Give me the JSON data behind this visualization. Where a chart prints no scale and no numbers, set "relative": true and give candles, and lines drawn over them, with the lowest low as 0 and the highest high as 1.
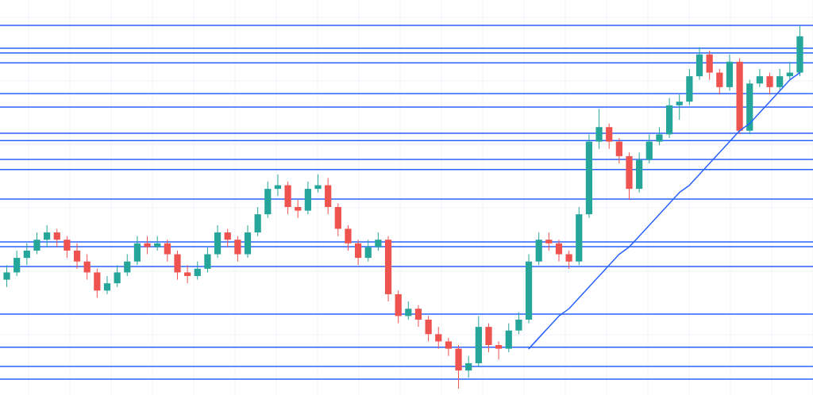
{
  "chart_data": {
    "type": "candlestick",
    "relative": true,
    "grid": true,
    "categories": [
      null,
      null,
      null,
      null,
      null,
      null,
      null,
      null,
      null,
      null,
      null,
      null,
      null,
      null,
      null,
      null,
      null,
      null,
      null,
      null,
      null,
      null,
      null,
      null,
      null,
      null,
      null,
      null,
      null,
      null,
      null,
      null,
      null,
      null,
      null,
      null,
      null,
      null,
      null,
      null,
      null,
      null,
      null,
      null,
      null,
      null,
      null,
      null,
      null,
      null,
      null,
      null,
      null,
      null,
      null,
      null,
      null,
      null,
      null,
      null,
      null,
      null,
      null,
      null,
      null,
      null,
      null,
      null,
      null,
      null,
      null,
      null,
      null,
      null,
      null,
      null,
      null,
      null,
      null,
      null
    ],
    "ohlc": [
      [
        0.3,
        0.34,
        0.28,
        0.32
      ],
      [
        0.32,
        0.38,
        0.31,
        0.36
      ],
      [
        0.36,
        0.4,
        0.34,
        0.38
      ],
      [
        0.38,
        0.43,
        0.37,
        0.41
      ],
      [
        0.41,
        0.45,
        0.39,
        0.43
      ],
      [
        0.43,
        0.44,
        0.39,
        0.41
      ],
      [
        0.41,
        0.42,
        0.36,
        0.38
      ],
      [
        0.38,
        0.4,
        0.33,
        0.35
      ],
      [
        0.35,
        0.37,
        0.3,
        0.32
      ],
      [
        0.32,
        0.33,
        0.25,
        0.27
      ],
      [
        0.27,
        0.31,
        0.26,
        0.29
      ],
      [
        0.29,
        0.34,
        0.28,
        0.32
      ],
      [
        0.32,
        0.37,
        0.31,
        0.35
      ],
      [
        0.35,
        0.42,
        0.34,
        0.4
      ],
      [
        0.4,
        0.42,
        0.37,
        0.39
      ],
      [
        0.39,
        0.42,
        0.38,
        0.4
      ],
      [
        0.4,
        0.41,
        0.35,
        0.37
      ],
      [
        0.37,
        0.38,
        0.3,
        0.32
      ],
      [
        0.32,
        0.34,
        0.29,
        0.31
      ],
      [
        0.31,
        0.35,
        0.3,
        0.33
      ],
      [
        0.33,
        0.39,
        0.32,
        0.37
      ],
      [
        0.37,
        0.45,
        0.36,
        0.43
      ],
      [
        0.43,
        0.44,
        0.39,
        0.41
      ],
      [
        0.41,
        0.42,
        0.35,
        0.37
      ],
      [
        0.37,
        0.45,
        0.36,
        0.43
      ],
      [
        0.43,
        0.5,
        0.42,
        0.48
      ],
      [
        0.48,
        0.57,
        0.47,
        0.55
      ],
      [
        0.55,
        0.59,
        0.53,
        0.56
      ],
      [
        0.56,
        0.57,
        0.48,
        0.5
      ],
      [
        0.5,
        0.52,
        0.47,
        0.49
      ],
      [
        0.49,
        0.57,
        0.48,
        0.55
      ],
      [
        0.55,
        0.59,
        0.54,
        0.56
      ],
      [
        0.56,
        0.58,
        0.48,
        0.5
      ],
      [
        0.5,
        0.51,
        0.42,
        0.44
      ],
      [
        0.44,
        0.45,
        0.38,
        0.4
      ],
      [
        0.4,
        0.41,
        0.34,
        0.36
      ],
      [
        0.36,
        0.41,
        0.35,
        0.39
      ],
      [
        0.39,
        0.43,
        0.38,
        0.41
      ],
      [
        0.41,
        0.42,
        0.24,
        0.26
      ],
      [
        0.26,
        0.27,
        0.18,
        0.2
      ],
      [
        0.2,
        0.24,
        0.19,
        0.22
      ],
      [
        0.22,
        0.23,
        0.17,
        0.19
      ],
      [
        0.19,
        0.2,
        0.13,
        0.15
      ],
      [
        0.15,
        0.17,
        0.11,
        0.13
      ],
      [
        0.13,
        0.14,
        0.09,
        0.11
      ],
      [
        0.11,
        0.12,
        0.0,
        0.05
      ],
      [
        0.05,
        0.09,
        0.03,
        0.07
      ],
      [
        0.07,
        0.2,
        0.06,
        0.17
      ],
      [
        0.17,
        0.18,
        0.1,
        0.12
      ],
      [
        0.12,
        0.13,
        0.08,
        0.11
      ],
      [
        0.11,
        0.18,
        0.1,
        0.16
      ],
      [
        0.16,
        0.21,
        0.15,
        0.19
      ],
      [
        0.19,
        0.37,
        0.18,
        0.35
      ],
      [
        0.35,
        0.43,
        0.34,
        0.41
      ],
      [
        0.41,
        0.43,
        0.38,
        0.4
      ],
      [
        0.4,
        0.41,
        0.35,
        0.37
      ],
      [
        0.37,
        0.38,
        0.33,
        0.35
      ],
      [
        0.35,
        0.5,
        0.34,
        0.48
      ],
      [
        0.48,
        0.7,
        0.47,
        0.68
      ],
      [
        0.68,
        0.77,
        0.66,
        0.72
      ],
      [
        0.72,
        0.73,
        0.66,
        0.68
      ],
      [
        0.68,
        0.69,
        0.62,
        0.64
      ],
      [
        0.64,
        0.65,
        0.52,
        0.55
      ],
      [
        0.55,
        0.65,
        0.54,
        0.63
      ],
      [
        0.63,
        0.7,
        0.62,
        0.68
      ],
      [
        0.68,
        0.72,
        0.67,
        0.7
      ],
      [
        0.7,
        0.8,
        0.69,
        0.78
      ],
      [
        0.78,
        0.81,
        0.74,
        0.79
      ],
      [
        0.79,
        0.88,
        0.78,
        0.86
      ],
      [
        0.86,
        0.94,
        0.85,
        0.92
      ],
      [
        0.92,
        0.93,
        0.85,
        0.87
      ],
      [
        0.87,
        0.88,
        0.81,
        0.83
      ],
      [
        0.83,
        0.92,
        0.82,
        0.9
      ],
      [
        0.9,
        0.91,
        0.7,
        0.71
      ],
      [
        0.71,
        0.85,
        0.7,
        0.84
      ],
      [
        0.84,
        0.88,
        0.83,
        0.86
      ],
      [
        0.86,
        0.87,
        0.81,
        0.83
      ],
      [
        0.83,
        0.88,
        0.82,
        0.86
      ],
      [
        0.86,
        0.9,
        0.85,
        0.87
      ],
      [
        0.87,
        1.0,
        0.86,
        0.97
      ]
    ],
    "series": [
      {
        "type": "line",
        "color": "#2962ff",
        "values": [
          null,
          null,
          null,
          null,
          null,
          null,
          null,
          null,
          null,
          null,
          null,
          null,
          null,
          null,
          null,
          null,
          null,
          null,
          null,
          null,
          null,
          null,
          null,
          null,
          null,
          null,
          null,
          null,
          null,
          null,
          null,
          null,
          null,
          null,
          null,
          null,
          null,
          null,
          null,
          null,
          null,
          null,
          null,
          null,
          null,
          null,
          null,
          null,
          null,
          null,
          null,
          null,
          0.11,
          0.14,
          0.17,
          0.2,
          0.22,
          0.25,
          0.28,
          0.31,
          0.34,
          0.37,
          0.39,
          0.42,
          0.45,
          0.48,
          0.51,
          0.54,
          0.56,
          0.59,
          0.62,
          0.65,
          0.68,
          0.71,
          0.73,
          0.76,
          0.79,
          0.82,
          0.85,
          0.87
        ]
      }
    ],
    "ref_lines": [
      {
        "axis": "y",
        "value": 1.0,
        "color": "#2962ff"
      },
      {
        "axis": "y",
        "value": 0.937,
        "color": "#2962ff"
      },
      {
        "axis": "y",
        "value": 0.924,
        "color": "#2962ff"
      },
      {
        "axis": "y",
        "value": 0.897,
        "color": "#2962ff"
      },
      {
        "axis": "y",
        "value": 0.812,
        "color": "#2962ff"
      },
      {
        "axis": "y",
        "value": 0.775,
        "color": "#2962ff"
      },
      {
        "axis": "y",
        "value": 0.703,
        "color": "#2962ff"
      },
      {
        "axis": "y",
        "value": 0.683,
        "color": "#2962ff"
      },
      {
        "axis": "y",
        "value": 0.631,
        "color": "#2962ff"
      },
      {
        "axis": "y",
        "value": 0.603,
        "color": "#2962ff"
      },
      {
        "axis": "y",
        "value": 0.522,
        "color": "#2962ff"
      },
      {
        "axis": "y",
        "value": 0.404,
        "color": "#2962ff"
      },
      {
        "axis": "y",
        "value": 0.391,
        "color": "#2962ff"
      },
      {
        "axis": "y",
        "value": 0.336,
        "color": "#2962ff"
      },
      {
        "axis": "y",
        "value": 0.205,
        "color": "#2962ff"
      },
      {
        "axis": "y",
        "value": 0.114,
        "color": "#2962ff"
      },
      {
        "axis": "y",
        "value": 0.061,
        "color": "#2962ff"
      },
      {
        "axis": "y",
        "value": 0.026,
        "color": "#2962ff"
      }
    ]
  }
}
